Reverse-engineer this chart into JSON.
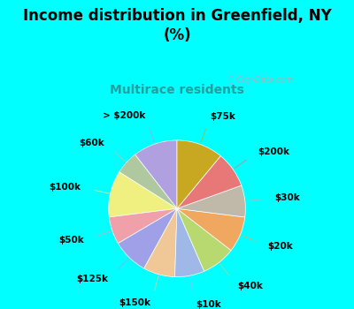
{
  "title": "Income distribution in Greenfield, NY\n(%)",
  "subtitle": "Multirace residents",
  "bg_color": "#00ffff",
  "chart_bg": "#d8eedc",
  "watermark": "ⓘ City-Data.com",
  "labels": [
    "> $200k",
    "$60k",
    "$100k",
    "$50k",
    "$125k",
    "$150k",
    "$10k",
    "$40k",
    "$20k",
    "$30k",
    "$200k",
    "$75k"
  ],
  "values": [
    10.5,
    5.5,
    11.0,
    6.5,
    8.5,
    7.5,
    7.0,
    8.0,
    8.5,
    7.5,
    8.5,
    11.0
  ],
  "colors": [
    "#b0a0e0",
    "#b0c8a0",
    "#f0f080",
    "#f0a0a8",
    "#a0a0e8",
    "#f0c898",
    "#a0b8e8",
    "#b8d870",
    "#f0a860",
    "#c0b8a8",
    "#e87878",
    "#c8a820"
  ],
  "startangle": 90,
  "label_fontsize": 7.5,
  "title_fontsize": 12,
  "subtitle_fontsize": 10,
  "subtitle_color": "#20a0a0",
  "title_color": "#000000"
}
